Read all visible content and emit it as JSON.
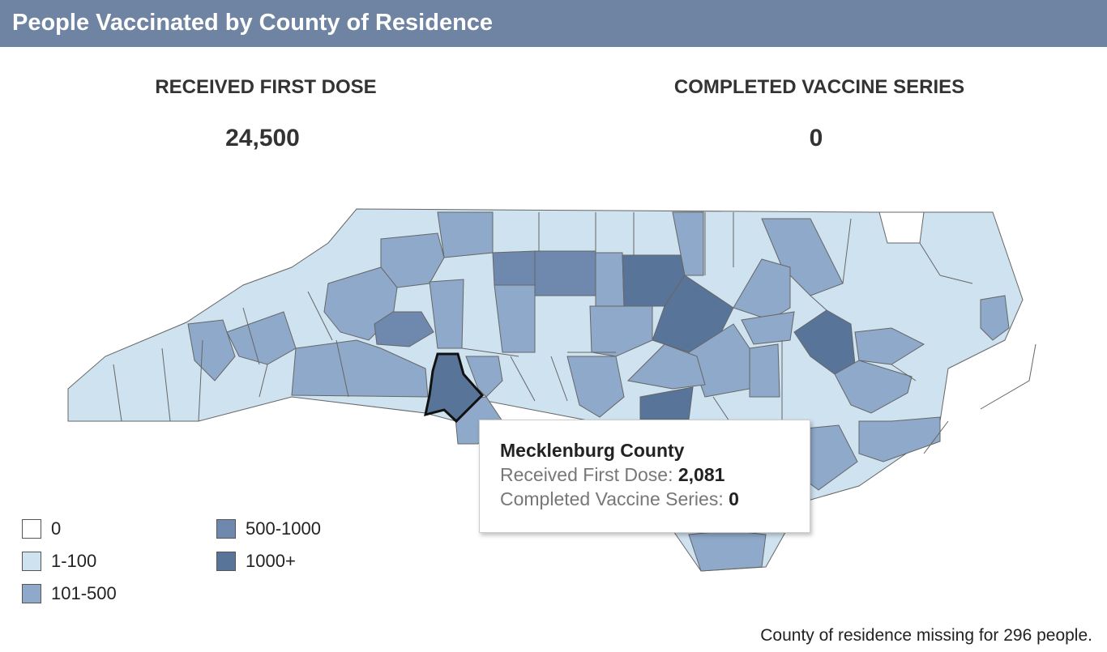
{
  "header": {
    "title": "People Vaccinated by County of Residence"
  },
  "stats": [
    {
      "label": "RECEIVED FIRST DOSE",
      "value": "24,500"
    },
    {
      "label": "COMPLETED VACCINE SERIES",
      "value": "0"
    }
  ],
  "tooltip": {
    "title": "Mecklenburg County",
    "rows": [
      {
        "label": "Received First Dose:",
        "value": "2,081"
      },
      {
        "label": "Completed Vaccine Series:",
        "value": "0"
      }
    ]
  },
  "legend": [
    {
      "label": "0",
      "color": "#ffffff"
    },
    {
      "label": "1-100",
      "color": "#cfe2f0"
    },
    {
      "label": "101-500",
      "color": "#8ea9c9"
    },
    {
      "label": "500-1000",
      "color": "#6f88ad"
    },
    {
      "label": "1000+",
      "color": "#587499"
    }
  ],
  "footnote": "County of residence missing for 296 people."
}
